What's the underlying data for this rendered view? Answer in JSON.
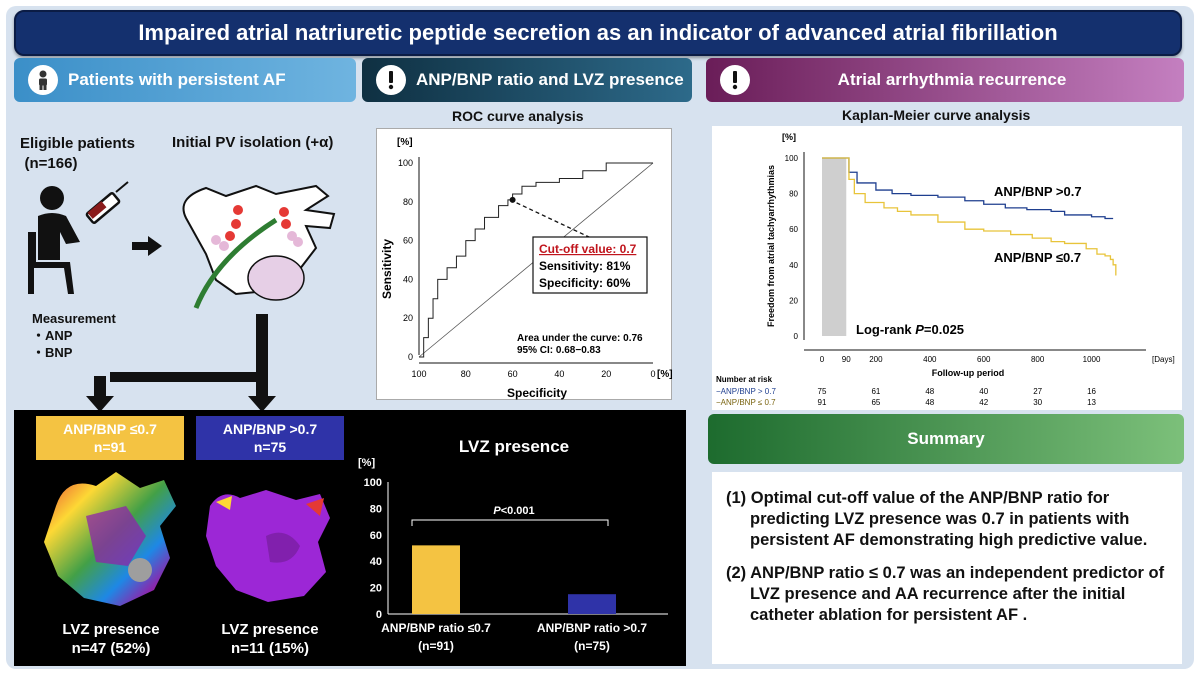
{
  "title": "Impaired atrial natriuretic peptide secretion as an indicator of advanced atrial fibrillation",
  "section1": {
    "header": "Patients with persistent AF",
    "eligible_line1": "Eligible patients",
    "eligible_line2": "(n=166)",
    "procedure": "Initial PV isolation (+α)",
    "measurement_label": "Measurement",
    "measurement_items": [
      "・ANP",
      "・BNP"
    ]
  },
  "section2": {
    "header": "ANP/BNP ratio and LVZ presence",
    "roc_title": "ROC curve analysis",
    "y_unit": "[%]",
    "x_unit": "[%]",
    "ylabel": "Sensitivity",
    "xlabel": "Specificity",
    "y_ticks": [
      "100",
      "80",
      "60",
      "40",
      "20",
      "0"
    ],
    "x_ticks": [
      "100",
      "80",
      "60",
      "40",
      "20",
      "0"
    ],
    "cutoff_label": "Cut-off value: 0.7",
    "sensitivity_label": "Sensitivity: 81%",
    "specificity_label": "Specificity: 60%",
    "auc_label": "Area under the curve: 0.76",
    "ci_label": "95% CI: 0.68−0.83"
  },
  "section3": {
    "header": "Atrial arrhythmia recurrence",
    "km_title": "Kaplan-Meier curve analysis",
    "y_unit": "[%]",
    "ylabel": "Freedom from atrial tachyarrhythmias",
    "y_ticks": [
      "100",
      "80",
      "60",
      "40",
      "20",
      "0"
    ],
    "x_ticks": [
      "0",
      "90",
      "200",
      "400",
      "600",
      "800",
      "1000"
    ],
    "x_unit": "[Days]",
    "xlabel": "Follow-up period",
    "legend_high": "ANP/BNP >0.7",
    "legend_low": "ANP/BNP ≤0.7",
    "logrank_prefix": "Log-rank ",
    "logrank_p": "P",
    "logrank_value": "=0.025",
    "risk_title": "Number at risk",
    "risk_rows": [
      {
        "label": "−ANP/BNP > 0.7",
        "values": [
          "75",
          "61",
          "48",
          "40",
          "27",
          "16"
        ]
      },
      {
        "label": "−ANP/BNP ≤ 0.7",
        "values": [
          "91",
          "65",
          "48",
          "42",
          "30",
          "13"
        ]
      }
    ]
  },
  "bottom": {
    "group_low_label": "ANP/BNP ≤0.7",
    "group_low_n": "n=91",
    "group_high_label": "ANP/BNP >0.7",
    "group_high_n": "n=75",
    "lvz_low_line1": "LVZ presence",
    "lvz_low_line2": "n=47 (52%)",
    "lvz_high_line1": "LVZ presence",
    "lvz_high_line2": "n=11 (15%)",
    "bar_title": "LVZ presence",
    "bar_unit": "[%]",
    "bar_y_ticks": [
      "100",
      "80",
      "60",
      "40",
      "20",
      "0"
    ],
    "bar_p_italic": "P",
    "bar_p_value": "<0.001",
    "bar_cat1_line1": "ANP/BNP ratio ≤0.7",
    "bar_cat1_line2": "(n=91)",
    "bar_cat2_line1": "ANP/BNP ratio >0.7",
    "bar_cat2_line2": "(n=75)"
  },
  "summary": {
    "header": "Summary",
    "point1": "(1) Optimal cut-off value of the ANP/BNP ratio for predicting LVZ presence was 0.7 in patients with persistent AF demonstrating high predictive value.",
    "point2": "(2) ANP/BNP ratio ≤ 0.7 was an independent predictor of LVZ presence and AA recurrence after the initial catheter ablation for persistent AF ."
  },
  "colors": {
    "title_bg": "#14306e",
    "low_group": "#f4c342",
    "high_group": "#2f33a8",
    "cutoff_red": "#c0141c",
    "km_high": "#1f3f8f",
    "km_low": "#e8c43a"
  },
  "chart_data": [
    {
      "type": "line",
      "title": "ROC curve analysis",
      "xlabel": "Specificity",
      "ylabel": "Sensitivity",
      "xlim": [
        100,
        0
      ],
      "ylim": [
        0,
        100
      ],
      "series": [
        {
          "values_xy": [
            [
              100,
              0
            ],
            [
              98,
              0
            ],
            [
              98,
              10
            ],
            [
              96,
              10
            ],
            [
              96,
              20
            ],
            [
              94,
              20
            ],
            [
              94,
              30
            ],
            [
              92,
              30
            ],
            [
              92,
              40
            ],
            [
              88,
              40
            ],
            [
              88,
              46
            ],
            [
              84,
              46
            ],
            [
              84,
              52
            ],
            [
              80,
              52
            ],
            [
              80,
              60
            ],
            [
              76,
              60
            ],
            [
              76,
              66
            ],
            [
              72,
              66
            ],
            [
              72,
              72
            ],
            [
              66,
              72
            ],
            [
              66,
              78
            ],
            [
              62,
              78
            ],
            [
              62,
              81
            ],
            [
              60,
              81
            ],
            [
              60,
              84
            ],
            [
              56,
              84
            ],
            [
              56,
              88
            ],
            [
              50,
              88
            ],
            [
              50,
              90
            ],
            [
              40,
              90
            ],
            [
              40,
              92
            ],
            [
              30,
              92
            ],
            [
              30,
              96
            ],
            [
              20,
              96
            ],
            [
              20,
              100
            ],
            [
              0,
              100
            ]
          ]
        }
      ],
      "reference_line": [
        [
          100,
          0
        ],
        [
          0,
          100
        ]
      ],
      "annotations": [
        "Cut-off value: 0.7",
        "Sensitivity: 81%",
        "Specificity: 60%",
        "Area under the curve: 0.76",
        "95% CI: 0.68−0.83"
      ]
    },
    {
      "type": "line",
      "title": "Kaplan-Meier curve analysis",
      "xlabel": "Follow-up period",
      "ylabel": "Freedom from atrial tachyarrhythmias",
      "xlim": [
        0,
        1150
      ],
      "ylim": [
        0,
        100
      ],
      "blanking_period_days": [
        0,
        90
      ],
      "series": [
        {
          "name": "ANP/BNP >0.7",
          "color": "#1f3f8f",
          "x": [
            0,
            90,
            100,
            130,
            200,
            260,
            330,
            430,
            530,
            600,
            680,
            760,
            850,
            900,
            1000,
            1050,
            1080
          ],
          "y": [
            100,
            100,
            92,
            86,
            82,
            80,
            79,
            78,
            76,
            74,
            72,
            71,
            70,
            68,
            67,
            66,
            66
          ]
        },
        {
          "name": "ANP/BNP ≤0.7",
          "color": "#e8c43a",
          "x": [
            0,
            90,
            100,
            120,
            160,
            230,
            280,
            330,
            430,
            530,
            600,
            700,
            780,
            850,
            900,
            980,
            1020,
            1050,
            1070,
            1080,
            1090
          ],
          "y": [
            100,
            100,
            88,
            80,
            75,
            72,
            70,
            68,
            64,
            60,
            59,
            57,
            55,
            53,
            52,
            49,
            46,
            45,
            43,
            40,
            34
          ]
        }
      ],
      "risk_table": {
        "x": [
          0,
          200,
          400,
          600,
          800,
          1000
        ],
        "ANP/BNP > 0.7": [
          75,
          61,
          48,
          40,
          27,
          16
        ],
        "ANP/BNP ≤ 0.7": [
          91,
          65,
          48,
          42,
          30,
          13
        ]
      }
    },
    {
      "type": "bar",
      "title": "LVZ presence",
      "categories": [
        "ANP/BNP ratio ≤0.7",
        "ANP/BNP ratio >0.7"
      ],
      "values": [
        52,
        15
      ],
      "colors": [
        "#f4c342",
        "#2f33a8"
      ],
      "ylim": [
        0,
        100
      ],
      "annotation": "P<0.001"
    }
  ]
}
